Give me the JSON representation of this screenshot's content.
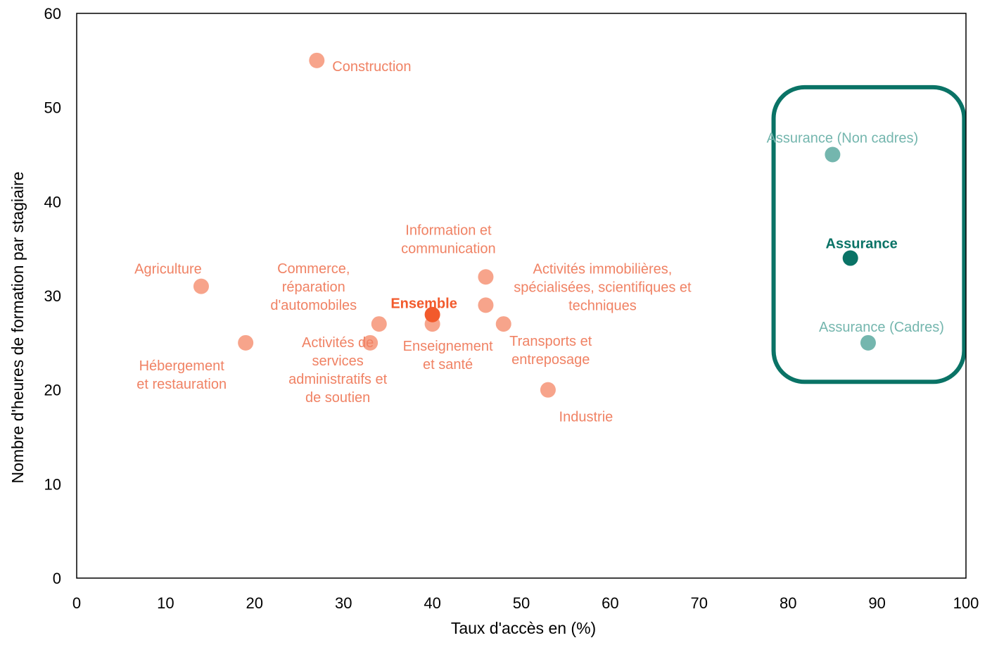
{
  "chart_data": {
    "type": "scatter",
    "xlabel": "Taux d'accès en (%)",
    "ylabel": "Nombre d'heures de formation par stagiaire",
    "xlim": [
      0,
      100
    ],
    "ylim": [
      0,
      60
    ],
    "x_ticks": [
      "0",
      "10",
      "20",
      "30",
      "40",
      "50",
      "60",
      "70",
      "80",
      "90",
      "100"
    ],
    "y_ticks": [
      "0",
      "10",
      "20",
      "30",
      "40",
      "50",
      "60"
    ],
    "grid": false,
    "legend": "none",
    "colors": {
      "sector": "#f7a48b",
      "sector_label": "#f08264",
      "ensemble": "#f25a2c",
      "assurance_light": "#74b6ae",
      "assurance": "#0a7366",
      "box": "#0a7366"
    },
    "points": [
      {
        "id": "construction",
        "label_lines": [
          "Construction"
        ],
        "x": 27,
        "y": 55,
        "group": "sector"
      },
      {
        "id": "agriculture",
        "label_lines": [
          "Agriculture"
        ],
        "x": 14,
        "y": 31,
        "group": "sector"
      },
      {
        "id": "hebergement",
        "label_lines": [
          "Hébergement",
          "et restauration"
        ],
        "x": 19,
        "y": 25,
        "group": "sector"
      },
      {
        "id": "activites-services",
        "label_lines": [
          "Activités de",
          "services",
          "administratifs et",
          "de soutien"
        ],
        "x": 33,
        "y": 25,
        "group": "sector"
      },
      {
        "id": "commerce",
        "label_lines": [
          "Commerce,",
          "réparation",
          "d'automobiles"
        ],
        "x": 34,
        "y": 27,
        "group": "sector"
      },
      {
        "id": "enseignement",
        "label_lines": [
          "Enseignement",
          "et santé"
        ],
        "x": 40,
        "y": 27,
        "group": "sector"
      },
      {
        "id": "ensemble",
        "label_lines": [
          "Ensemble"
        ],
        "x": 40,
        "y": 28,
        "group": "ensemble"
      },
      {
        "id": "information",
        "label_lines": [
          "Information et",
          "communication"
        ],
        "x": 46,
        "y": 32,
        "group": "sector"
      },
      {
        "id": "immobilieres",
        "label_lines": [
          "Activités immobilières,",
          "spécialisées, scientifiques et",
          "techniques"
        ],
        "x": 46,
        "y": 29,
        "group": "sector"
      },
      {
        "id": "transports",
        "label_lines": [
          "Transports et",
          "entreposage"
        ],
        "x": 48,
        "y": 27,
        "group": "sector"
      },
      {
        "id": "industrie",
        "label_lines": [
          "Industrie"
        ],
        "x": 53,
        "y": 20,
        "group": "sector"
      },
      {
        "id": "assurance-non-cadres",
        "label_lines": [
          "Assurance (Non cadres)"
        ],
        "x": 85,
        "y": 45,
        "group": "assurance_light"
      },
      {
        "id": "assurance",
        "label_lines": [
          "Assurance"
        ],
        "x": 87,
        "y": 34,
        "group": "assurance"
      },
      {
        "id": "assurance-cadres",
        "label_lines": [
          "Assurance (Cadres)"
        ],
        "x": 89,
        "y": 25,
        "group": "assurance_light"
      }
    ],
    "highlight_box": {
      "x_range": [
        79,
        99
      ],
      "y_range": [
        21,
        52
      ]
    }
  }
}
